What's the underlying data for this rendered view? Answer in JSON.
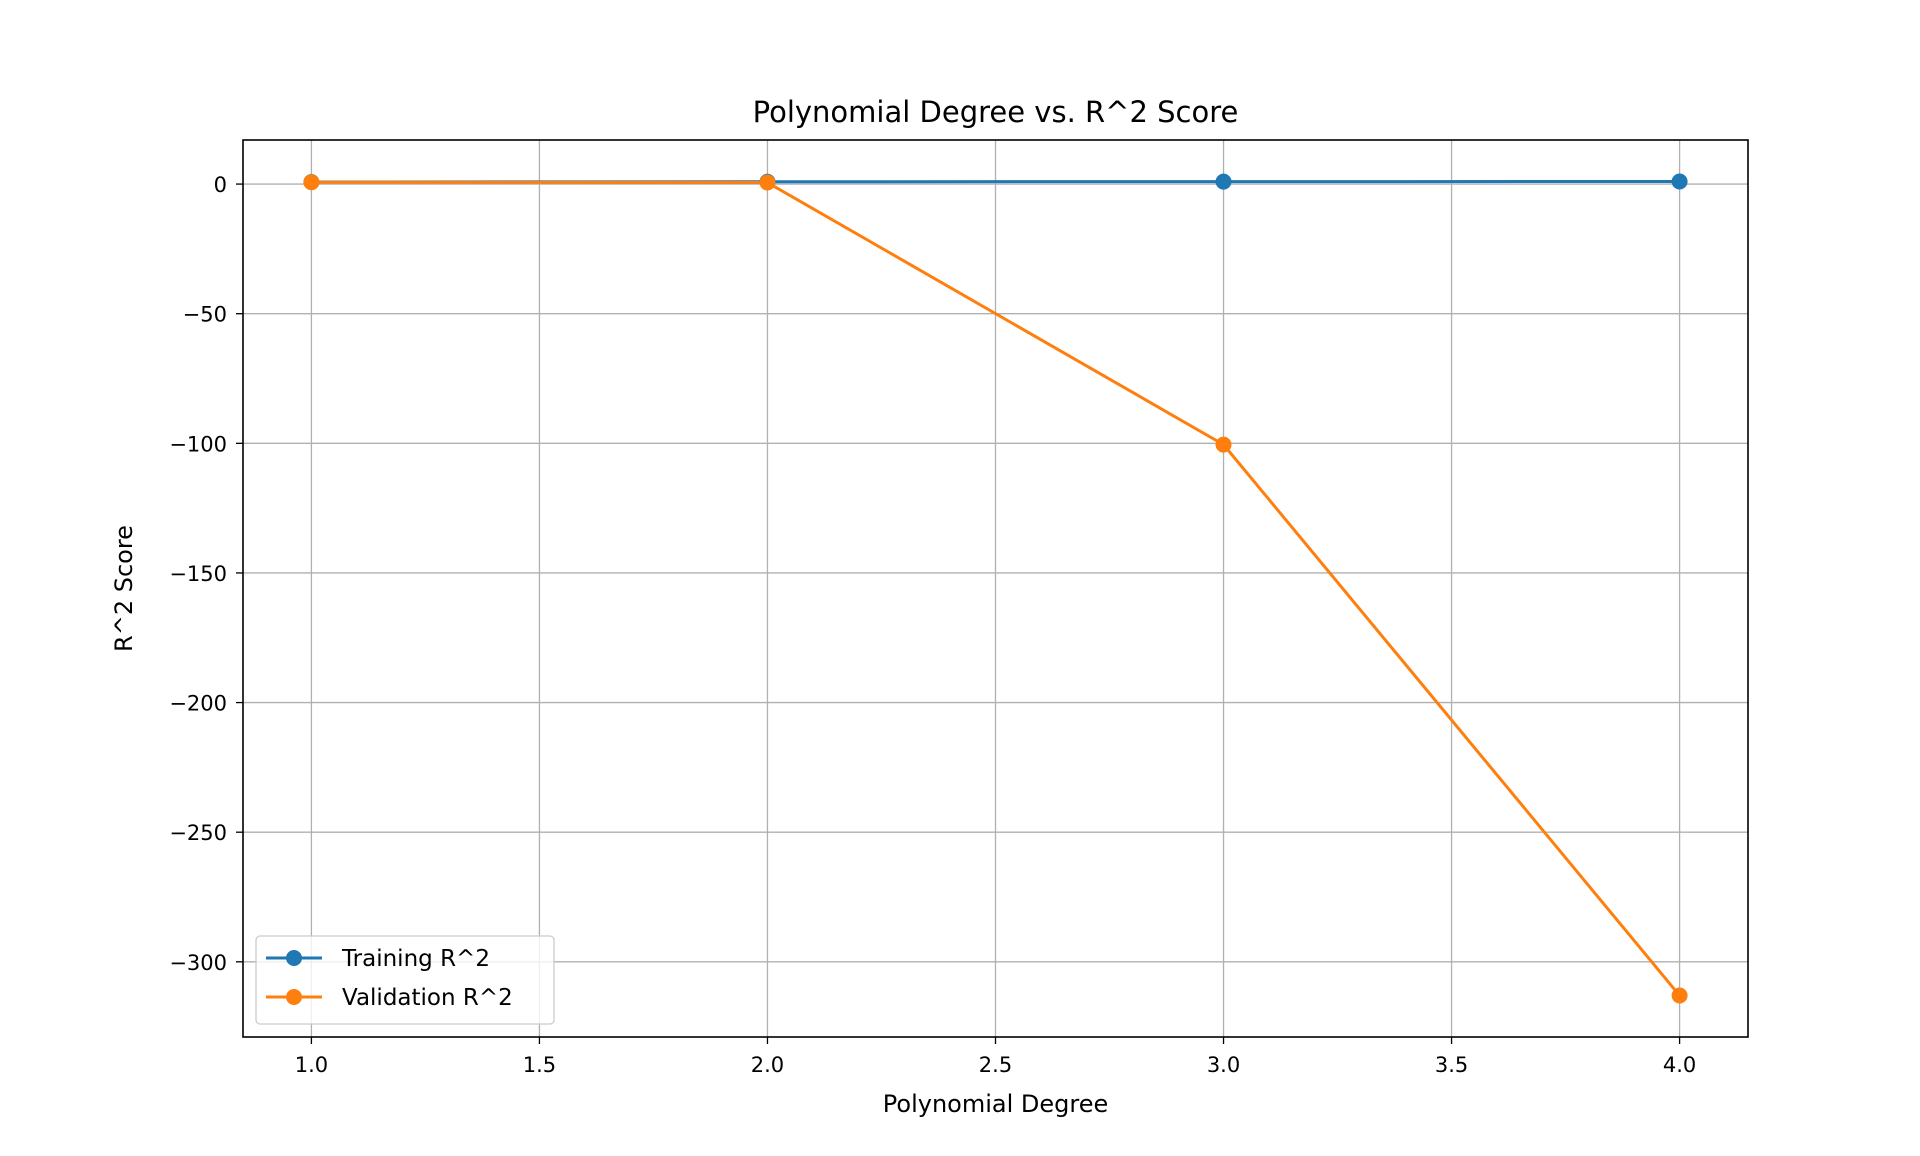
{
  "chart_data": {
    "type": "line",
    "title": "Polynomial Degree vs. R^2 Score",
    "xlabel": "Polynomial Degree",
    "ylabel": "R^2 Score",
    "x": [
      1.0,
      2.0,
      3.0,
      4.0
    ],
    "xlim": [
      0.85,
      4.15
    ],
    "ylim": [
      -329,
      17
    ],
    "xticks": [
      1.0,
      1.5,
      2.0,
      2.5,
      3.0,
      3.5,
      4.0
    ],
    "xtick_labels": [
      "1.0",
      "1.5",
      "2.0",
      "2.5",
      "3.0",
      "3.5",
      "4.0"
    ],
    "yticks": [
      0,
      -50,
      -100,
      -150,
      -200,
      -250,
      -300
    ],
    "ytick_labels": [
      "0",
      "−50",
      "−100",
      "−150",
      "−200",
      "−250",
      "−300"
    ],
    "grid": true,
    "legend_position": "lower-left",
    "series": [
      {
        "name": "Training R^2",
        "color": "#1f77b4",
        "marker": "circle",
        "values": [
          0.8,
          0.9,
          0.95,
          0.99
        ]
      },
      {
        "name": "Validation R^2",
        "color": "#ff7f0e",
        "marker": "circle",
        "values": [
          0.7,
          0.6,
          -100.5,
          -313
        ]
      }
    ]
  }
}
